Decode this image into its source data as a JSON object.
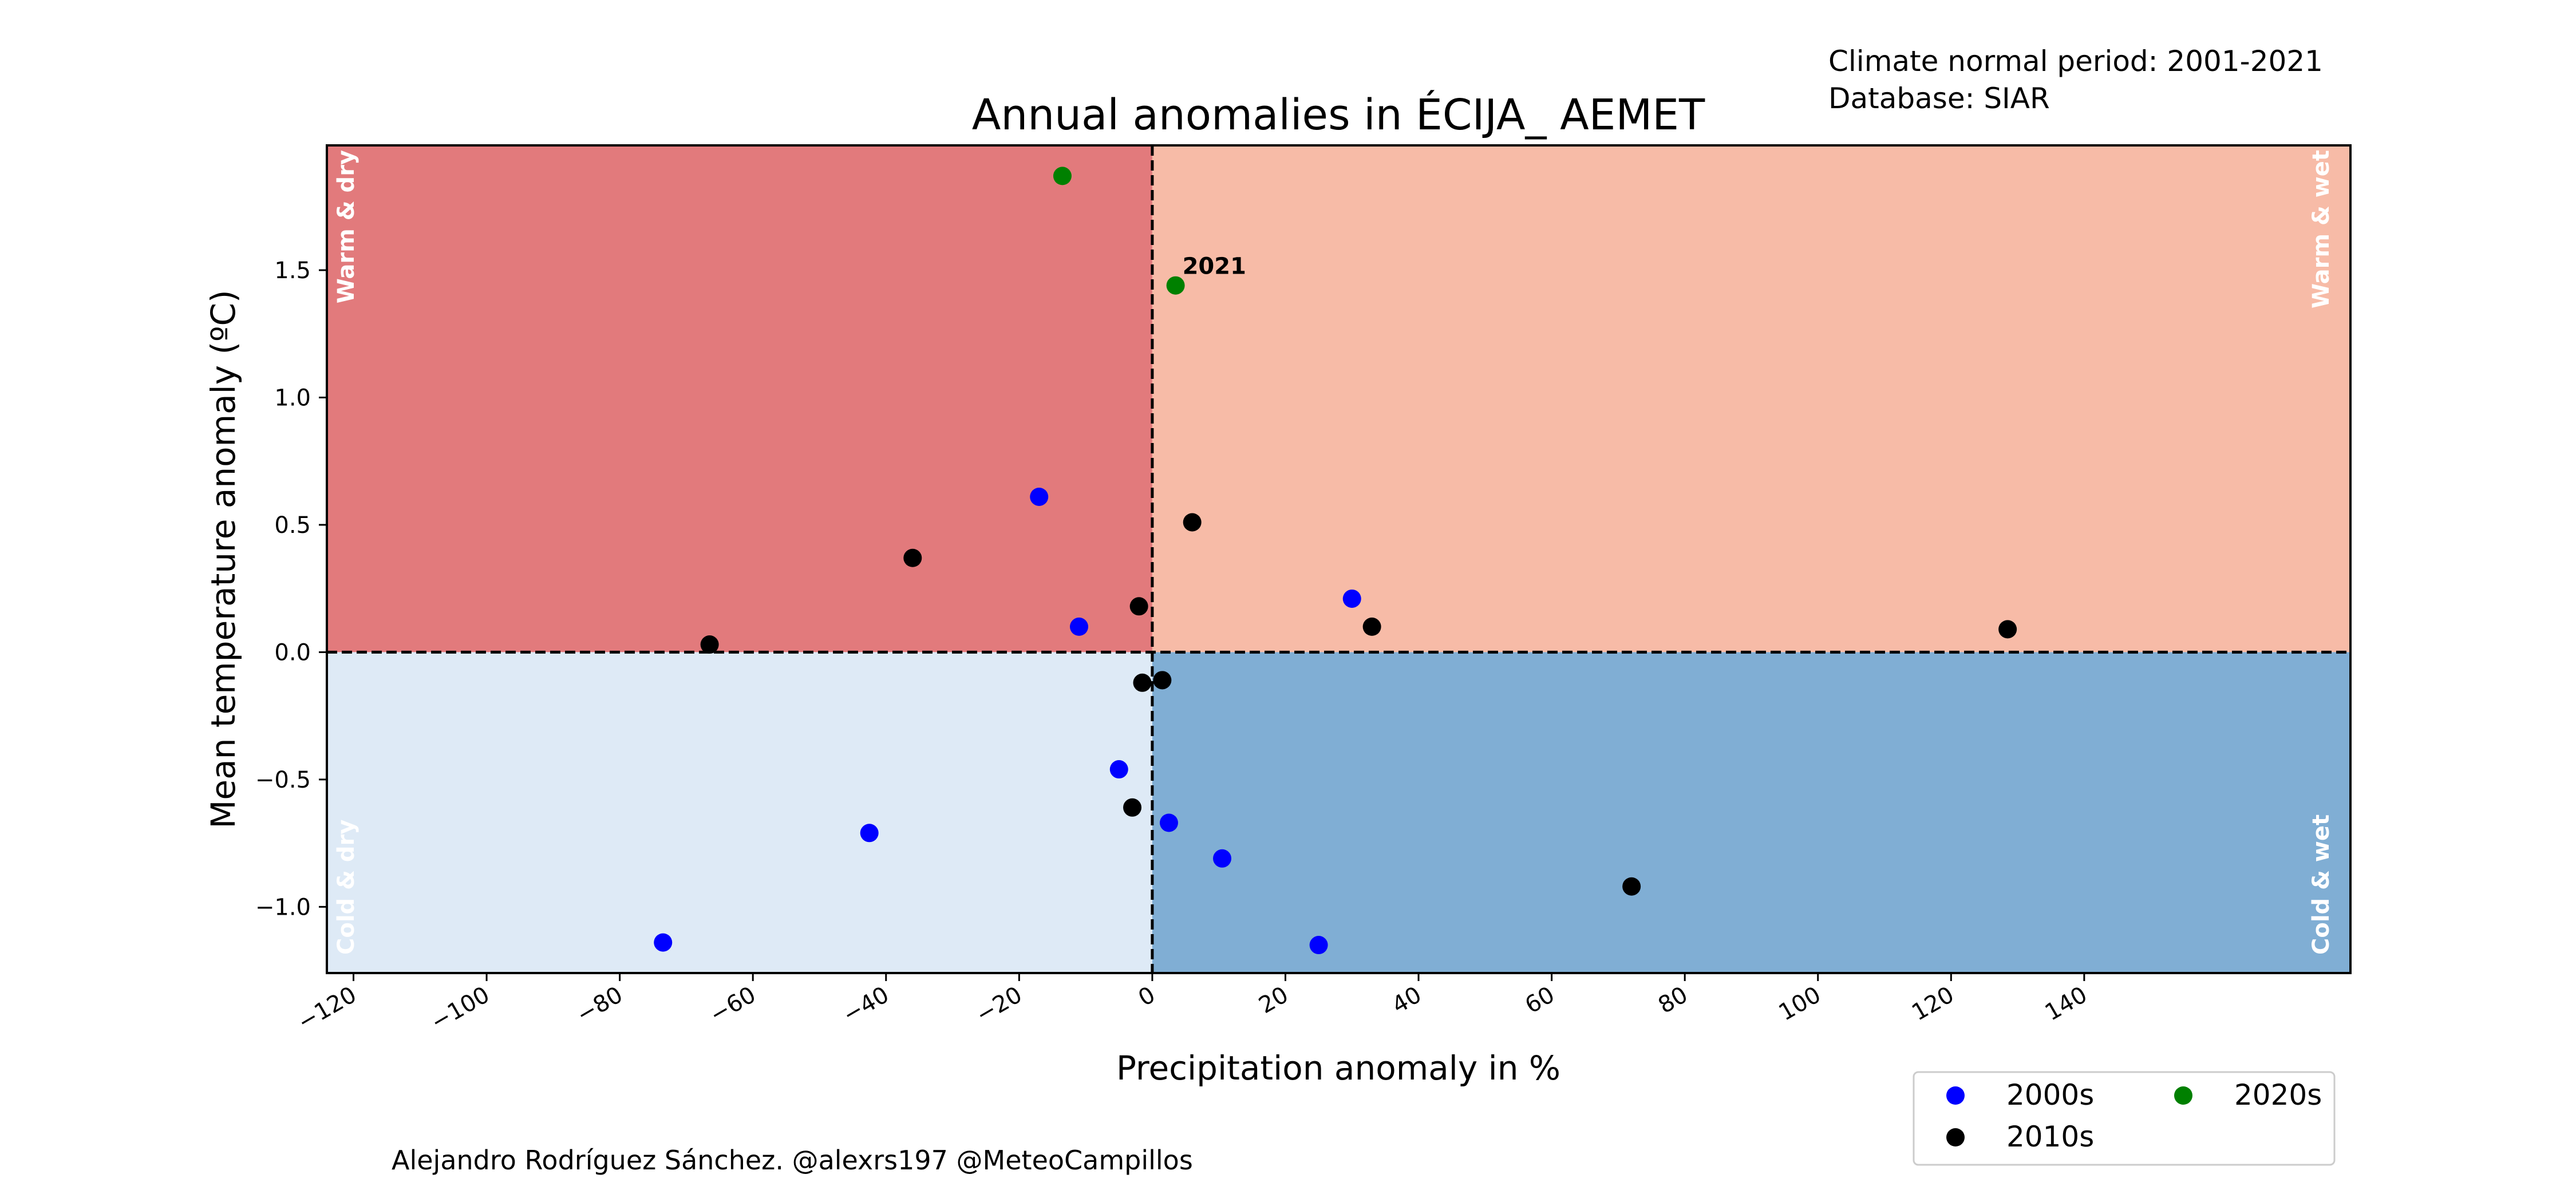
{
  "header": {
    "climate_period": "Climate normal period: 2001-2021",
    "database": "Database: SIAR"
  },
  "footer": {
    "credit": "Alejandro Rodríguez Sánchez. @alexrs197 @MeteoCampillos"
  },
  "quadrants": {
    "warm_dry": "Warm & dry",
    "warm_wet": "Warm & wet",
    "cold_dry": "Cold & dry",
    "cold_wet": "Cold & wet"
  },
  "colors": {
    "warm_dry": "#e27a7c",
    "warm_wet": "#f7bba7",
    "cold_dry": "#deeaf6",
    "cold_wet": "#80aed4",
    "2000s": "#0000ff",
    "2010s": "#000000",
    "2020s": "#008000"
  },
  "chart_data": {
    "type": "scatter",
    "title": "Annual anomalies in ÉCIJA_ AEMET",
    "xlabel": "Precipitation anomaly in %",
    "ylabel": "Mean temperature anomaly (ºC)",
    "xlim": [
      -124,
      180
    ],
    "ylim": [
      -1.26,
      1.99
    ],
    "xticks": [
      -120,
      -100,
      -80,
      -60,
      -40,
      -20,
      0,
      20,
      40,
      60,
      80,
      100,
      120,
      140
    ],
    "yticks": [
      -1.0,
      -0.5,
      0.0,
      0.5,
      1.0,
      1.5
    ],
    "ytick_labels": [
      "−1.0",
      "−0.5",
      "0.0",
      "0.5",
      "1.0",
      "1.5"
    ],
    "xtick_labels": [
      "−120",
      "−100",
      "−80",
      "−60",
      "−40",
      "−20",
      "0",
      "20",
      "40",
      "60",
      "80",
      "100",
      "120",
      "140"
    ],
    "reference_lines": {
      "x": 0,
      "y": 0,
      "style": "dashed"
    },
    "grid": false,
    "legend_position": "bottom-right",
    "annotations": [
      {
        "text": "2021",
        "x": 3.5,
        "y": 1.44
      }
    ],
    "series": [
      {
        "name": "2000s",
        "points": [
          {
            "x": -17,
            "y": 0.61
          },
          {
            "x": -11,
            "y": 0.1
          },
          {
            "x": 30,
            "y": 0.21
          },
          {
            "x": -5,
            "y": -0.46
          },
          {
            "x": -42.5,
            "y": -0.71
          },
          {
            "x": -73.5,
            "y": -1.14
          },
          {
            "x": 2.5,
            "y": -0.67
          },
          {
            "x": 10.5,
            "y": -0.81
          },
          {
            "x": 25,
            "y": -1.15
          }
        ]
      },
      {
        "name": "2010s",
        "points": [
          {
            "x": -36,
            "y": 0.37
          },
          {
            "x": -66.5,
            "y": 0.03
          },
          {
            "x": -2,
            "y": 0.18
          },
          {
            "x": 6,
            "y": 0.51
          },
          {
            "x": 33,
            "y": 0.1
          },
          {
            "x": 128.5,
            "y": 0.09
          },
          {
            "x": -1.5,
            "y": -0.12
          },
          {
            "x": 1.5,
            "y": -0.11
          },
          {
            "x": -3,
            "y": -0.61
          },
          {
            "x": 72,
            "y": -0.92
          }
        ]
      },
      {
        "name": "2020s",
        "points": [
          {
            "x": -13.5,
            "y": 1.87
          },
          {
            "x": 3.5,
            "y": 1.44
          }
        ]
      }
    ]
  }
}
